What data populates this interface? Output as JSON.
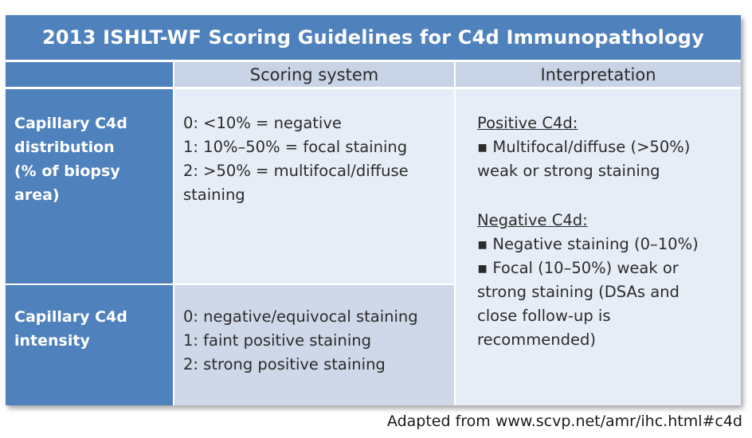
{
  "title": "2013 ISHLT-WF Scoring Guidelines for C4d Immunopathology",
  "headers": {
    "scoring_system": "Scoring system",
    "interpretation": "Interpretation"
  },
  "rows": [
    {
      "label_lines": [
        "Capillary C4d",
        "distribution",
        "(% of biopsy",
        "area)"
      ],
      "scoring_lines": [
        "0: <10% = negative",
        "1: 10%–50% = focal staining",
        "2: >50% = multifocal/diffuse",
        "staining"
      ]
    },
    {
      "label_lines": [
        "Capillary C4d",
        "intensity"
      ],
      "scoring_lines": [
        "0: negative/equivocal staining",
        "1: faint positive staining",
        "2: strong positive staining"
      ]
    }
  ],
  "interpretation": {
    "positive_heading": "Positive C4d:",
    "positive_lines": [
      "▪ Multifocal/diffuse (>50%)",
      "weak or strong staining"
    ],
    "negative_heading": "Negative C4d:",
    "negative_lines": [
      "▪ Negative staining (0–10%)",
      "▪ Focal (10–50%) weak or",
      "strong staining (DSAs and",
      "close follow-up is",
      "recommended)"
    ]
  },
  "caption": "Adapted from www.scvp.net/amr/ihc.html#c4d",
  "colors": {
    "header_blue": "#4f81bd",
    "light_cell": "#e7edf6",
    "mid_cell": "#cfd8e9",
    "header_cell": "#c9d3e6"
  }
}
